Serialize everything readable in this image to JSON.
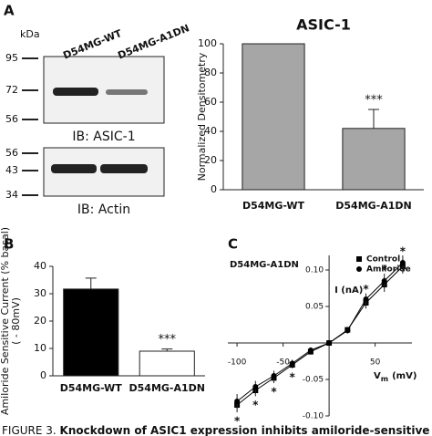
{
  "panel_labels": [
    "A",
    "B",
    "C"
  ],
  "blot": {
    "unit": "kDa",
    "lanes": [
      "D54MG-WT",
      "D54MG-A1DN"
    ],
    "panels": [
      {
        "markers": [
          95,
          72,
          56
        ],
        "label": "IB: ASIC-1"
      },
      {
        "markers": [
          56,
          43,
          34
        ],
        "label": "IB: Actin"
      }
    ]
  },
  "chart_data": [
    {
      "type": "bar",
      "title": "ASIC-1",
      "ylabel": [
        "Normalized Densitometry"
      ],
      "categories": [
        "D54MG-WT",
        "D54MG-A1DN"
      ],
      "values": [
        100,
        42
      ],
      "errors": [
        0,
        13
      ],
      "value_annotations": [
        null,
        "***"
      ],
      "colors": [
        "#a6a6a6",
        "#a6a6a6"
      ],
      "ylim": [
        0,
        100
      ],
      "yticks": [
        0,
        20,
        40,
        60,
        80,
        100
      ]
    },
    {
      "type": "bar",
      "ylabel": [
        "Amiloride Sensitive Current (% basal)",
        "( - 80mV)"
      ],
      "categories": [
        "D54MG-WT",
        "D54MG-A1DN"
      ],
      "values": [
        31.7,
        9
      ],
      "errors": [
        4,
        0.8
      ],
      "value_annotations": [
        null,
        "***"
      ],
      "colors": [
        "#000000",
        "#ffffff"
      ],
      "ylim": [
        0,
        40
      ],
      "yticks": [
        0,
        10,
        20,
        30,
        40
      ]
    },
    {
      "type": "line",
      "title": "D54MG-A1DN",
      "ylabel": "I (nA)",
      "xlabel": "V",
      "xlabel_sub": "m",
      "xlabel_unit": "(mV)",
      "x": [
        -100,
        -80,
        -60,
        -40,
        -20,
        0,
        20,
        40,
        60,
        80
      ],
      "series": [
        {
          "name": "Control",
          "color": "#000000",
          "marker": "square",
          "values": [
            -0.085,
            -0.065,
            -0.048,
            -0.03,
            -0.012,
            0,
            0.018,
            0.055,
            0.08,
            0.105
          ],
          "errors": [
            0.01,
            0.008,
            0.007,
            0.005,
            0.004,
            0,
            0.004,
            0.008,
            0.01,
            0.01
          ]
        },
        {
          "name": "Amiloride",
          "color": "#000000",
          "marker": "circle",
          "values": [
            -0.08,
            -0.06,
            -0.045,
            -0.028,
            -0.01,
            0,
            0.017,
            0.06,
            0.085,
            0.11
          ],
          "errors": [
            0.01,
            0.008,
            0.007,
            0.005,
            0.004,
            0,
            0.004,
            0.008,
            0.01,
            0.01
          ]
        }
      ],
      "annotations": [
        "*",
        "*",
        "*",
        "*",
        null,
        null,
        null,
        "*",
        "*",
        "*"
      ],
      "xlim": [
        -110,
        90
      ],
      "xticks": [
        -100,
        -50,
        50
      ],
      "ylim": [
        -0.1,
        0.12
      ],
      "yticks": [
        {
          "value": 0.1,
          "label": "0.10"
        },
        {
          "value": 0.05,
          "label": "0.05"
        },
        {
          "value": -0.05,
          "label": "-0.05"
        },
        {
          "value": -0.1,
          "label": "-0.10"
        }
      ],
      "legend": "upper right"
    }
  ],
  "caption": {
    "label": "FIGURE 3.",
    "text": "Knockdown of ASIC1 expression inhibits amiloride-sensitive"
  }
}
